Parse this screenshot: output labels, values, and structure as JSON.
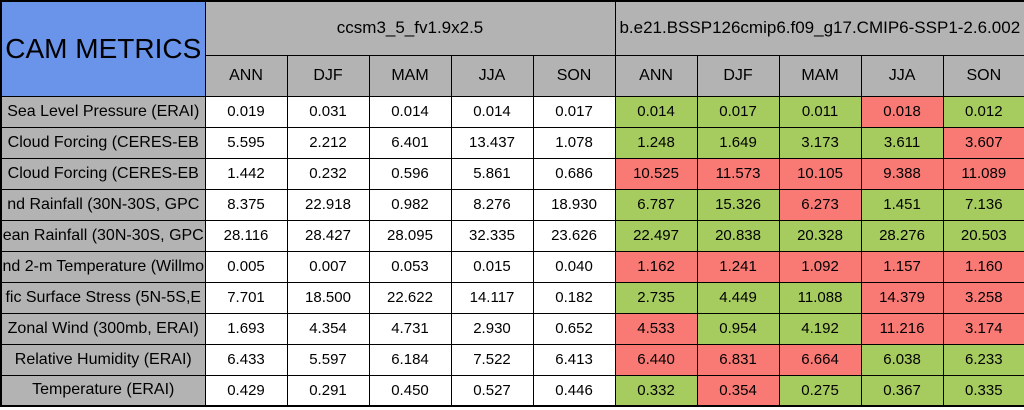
{
  "colors": {
    "header_blue": "#6a93ea",
    "header_gray": "#b3b3b3",
    "cell_white": "#ffffff",
    "better_green": "#a6cc60",
    "worse_red": "#f97a75",
    "border_black": "#000000",
    "text_black": "#000000"
  },
  "chart_data": {
    "type": "table",
    "title": "CAM METRICS",
    "column_groups": [
      {
        "name": "ccsm3_5_fv1.9x2.5",
        "columns": [
          "ANN",
          "DJF",
          "MAM",
          "JJA",
          "SON"
        ]
      },
      {
        "name": "b.e21.BSSP126cmip6.f09_g17.CMIP6-SSP1-2.6.002",
        "columns": [
          "ANN",
          "DJF",
          "MAM",
          "JJA",
          "SON"
        ]
      }
    ],
    "cell_color_legend": {
      "better_green": "#a6cc60",
      "worse_red": "#f97a75"
    },
    "rows": [
      {
        "label": "Sea Level Pressure (ERAI)",
        "model1_values": [
          "0.019",
          "0.031",
          "0.014",
          "0.014",
          "0.017"
        ],
        "model2_values": [
          "0.014",
          "0.017",
          "0.011",
          "0.018",
          "0.012"
        ],
        "model2_status": [
          "better",
          "better",
          "better",
          "worse",
          "better"
        ]
      },
      {
        "label": "Cloud Forcing (CERES-EB",
        "model1_values": [
          "5.595",
          "2.212",
          "6.401",
          "13.437",
          "1.078"
        ],
        "model2_values": [
          "1.248",
          "1.649",
          "3.173",
          "3.611",
          "3.607"
        ],
        "model2_status": [
          "better",
          "better",
          "better",
          "better",
          "worse"
        ]
      },
      {
        "label": "Cloud Forcing (CERES-EB",
        "model1_values": [
          "1.442",
          "0.232",
          "0.596",
          "5.861",
          "0.686"
        ],
        "model2_values": [
          "10.525",
          "11.573",
          "10.105",
          "9.388",
          "11.089"
        ],
        "model2_status": [
          "worse",
          "worse",
          "worse",
          "worse",
          "worse"
        ]
      },
      {
        "label": "nd Rainfall (30N-30S, GPC",
        "model1_values": [
          "8.375",
          "22.918",
          "0.982",
          "8.276",
          "18.930"
        ],
        "model2_values": [
          "6.787",
          "15.326",
          "6.273",
          "1.451",
          "7.136"
        ],
        "model2_status": [
          "better",
          "better",
          "worse",
          "better",
          "better"
        ]
      },
      {
        "label": "ean Rainfall (30N-30S, GPC",
        "model1_values": [
          "28.116",
          "28.427",
          "28.095",
          "32.335",
          "23.626"
        ],
        "model2_values": [
          "22.497",
          "20.838",
          "20.328",
          "28.276",
          "20.503"
        ],
        "model2_status": [
          "better",
          "better",
          "better",
          "better",
          "better"
        ]
      },
      {
        "label": "nd 2-m Temperature (Willmo",
        "model1_values": [
          "0.005",
          "0.007",
          "0.053",
          "0.015",
          "0.040"
        ],
        "model2_values": [
          "1.162",
          "1.241",
          "1.092",
          "1.157",
          "1.160"
        ],
        "model2_status": [
          "worse",
          "worse",
          "worse",
          "worse",
          "worse"
        ]
      },
      {
        "label": "fic Surface Stress (5N-5S,E",
        "model1_values": [
          "7.701",
          "18.500",
          "22.622",
          "14.117",
          "0.182"
        ],
        "model2_values": [
          "2.735",
          "4.449",
          "11.088",
          "14.379",
          "3.258"
        ],
        "model2_status": [
          "better",
          "better",
          "better",
          "worse",
          "worse"
        ]
      },
      {
        "label": "Zonal Wind (300mb, ERAI)",
        "model1_values": [
          "1.693",
          "4.354",
          "4.731",
          "2.930",
          "0.652"
        ],
        "model2_values": [
          "4.533",
          "0.954",
          "4.192",
          "11.216",
          "3.174"
        ],
        "model2_status": [
          "worse",
          "better",
          "better",
          "worse",
          "worse"
        ]
      },
      {
        "label": "Relative Humidity (ERAI)",
        "model1_values": [
          "6.433",
          "5.597",
          "6.184",
          "7.522",
          "6.413"
        ],
        "model2_values": [
          "6.440",
          "6.831",
          "6.664",
          "6.038",
          "6.233"
        ],
        "model2_status": [
          "worse",
          "worse",
          "worse",
          "better",
          "better"
        ]
      },
      {
        "label": "Temperature (ERAI)",
        "model1_values": [
          "0.429",
          "0.291",
          "0.450",
          "0.527",
          "0.446"
        ],
        "model2_values": [
          "0.332",
          "0.354",
          "0.275",
          "0.367",
          "0.335"
        ],
        "model2_status": [
          "better",
          "worse",
          "better",
          "better",
          "better"
        ]
      }
    ]
  }
}
